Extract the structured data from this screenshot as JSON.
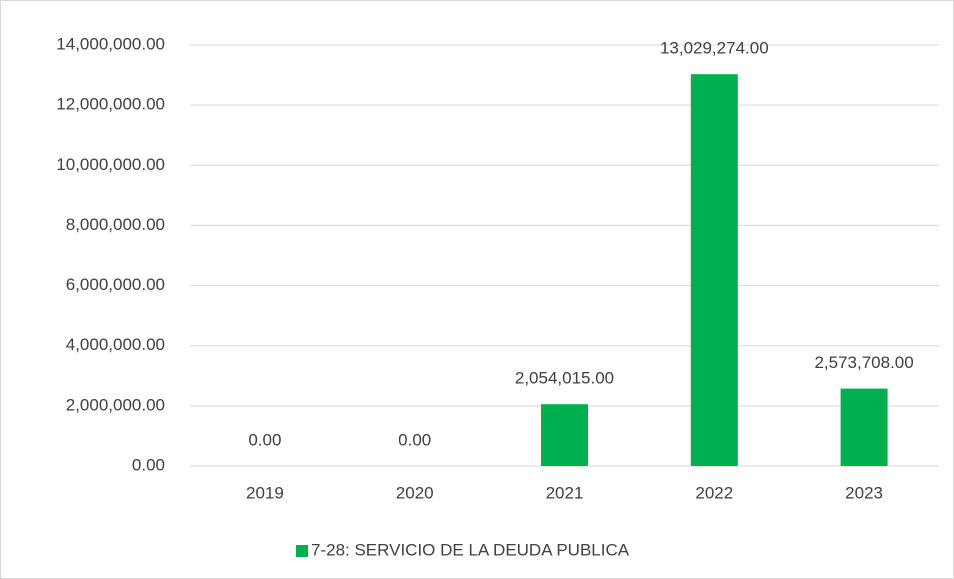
{
  "chart_data": {
    "type": "bar",
    "categories": [
      "2019",
      "2020",
      "2021",
      "2022",
      "2023"
    ],
    "series": [
      {
        "name": "7-28: SERVICIO DE LA DEUDA PUBLICA",
        "color": "#00b050",
        "values": [
          0,
          0,
          2054015,
          13029274,
          2573708
        ],
        "value_labels": [
          "0.00",
          "0.00",
          "2,054,015.00",
          "13,029,274.00",
          "2,573,708.00"
        ]
      }
    ],
    "ylim": [
      0,
      14000000
    ],
    "yticks": [
      {
        "value": 0,
        "label": "0.00"
      },
      {
        "value": 2000000,
        "label": "2,000,000.00"
      },
      {
        "value": 4000000,
        "label": "4,000,000.00"
      },
      {
        "value": 6000000,
        "label": "6,000,000.00"
      },
      {
        "value": 8000000,
        "label": "8,000,000.00"
      },
      {
        "value": 10000000,
        "label": "10,000,000.00"
      },
      {
        "value": 12000000,
        "label": "12,000,000.00"
      },
      {
        "value": 14000000,
        "label": "14,000,000.00"
      }
    ],
    "grid": true,
    "legend": "bottom"
  }
}
